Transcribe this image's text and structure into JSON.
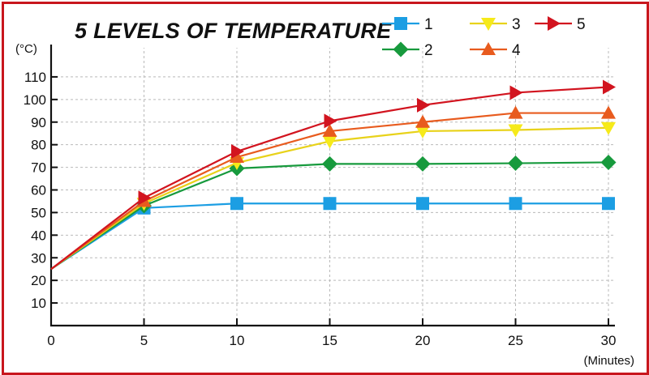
{
  "chart_data": {
    "type": "line",
    "title": "5 LEVELS OF TEMPERATURE",
    "ylabel": "(°C)",
    "xlabel": "(Minutes)",
    "x": [
      0,
      5,
      10,
      15,
      20,
      25,
      30
    ],
    "x_ticks": [
      0,
      5,
      10,
      15,
      20,
      25,
      30
    ],
    "y_ticks": [
      10,
      20,
      30,
      40,
      50,
      60,
      70,
      80,
      90,
      100,
      110
    ],
    "xlim": [
      0,
      30
    ],
    "ylim": [
      0,
      120
    ],
    "grid": true,
    "legend_position": "top-right",
    "series": [
      {
        "name": "1",
        "marker": "square",
        "color": "#1c9ee3",
        "values": [
          25,
          52,
          54,
          54,
          54,
          54,
          54
        ]
      },
      {
        "name": "2",
        "marker": "diamond",
        "color": "#179a3d",
        "values": [
          25,
          53,
          69.5,
          71.5,
          71.5,
          71.8,
          72.2
        ]
      },
      {
        "name": "3",
        "marker": "triangle-down",
        "color": "#f6ea1a",
        "line_color": "#e8d21a",
        "values": [
          25,
          54,
          72,
          81.5,
          86,
          86.5,
          87.5
        ]
      },
      {
        "name": "4",
        "marker": "triangle-up",
        "color": "#e85b1e",
        "values": [
          25,
          55,
          74.5,
          86,
          90,
          94,
          94
        ]
      },
      {
        "name": "5",
        "marker": "triangle-right",
        "color": "#d2141f",
        "values": [
          25,
          56.5,
          77,
          90.5,
          97.5,
          103,
          105.5
        ]
      }
    ]
  }
}
